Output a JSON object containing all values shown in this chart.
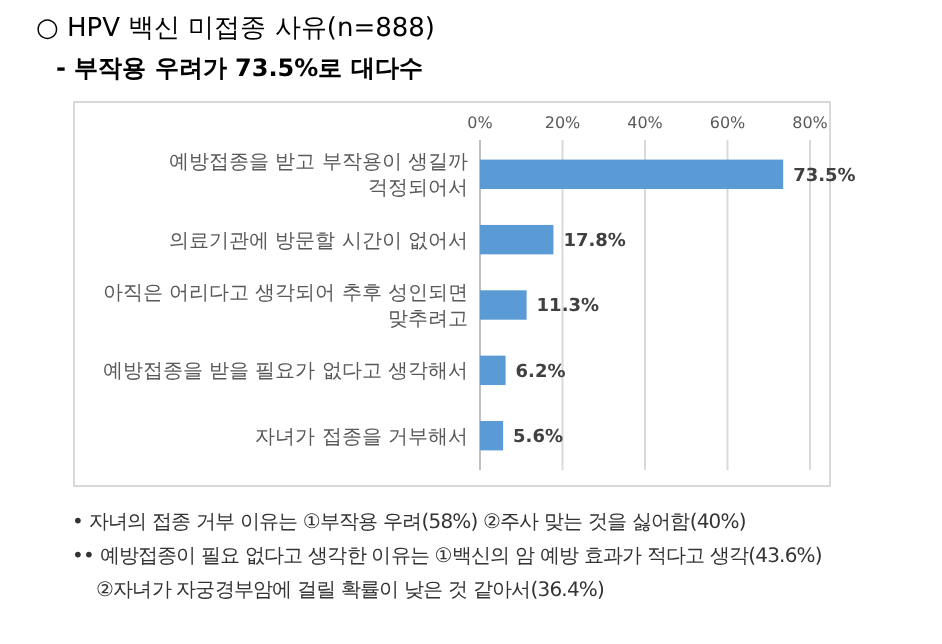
{
  "chart_data": {
    "type": "bar",
    "orientation": "horizontal",
    "title": "○ HPV 백신 미접종 사유(n=888)",
    "subtitle": "- 부작용 우려가 73.5%로 대다수",
    "categories": [
      "예방접종을 받고 부작용이 생길까 걱정되어서",
      "의료기관에 방문할 시간이 없어서",
      "아직은 어리다고 생각되어 추후 성인되면 맞추려고",
      "예방접종을 받을 필요가 없다고 생각해서",
      "자녀가 접종을 거부해서"
    ],
    "values": [
      73.5,
      17.8,
      11.3,
      6.2,
      5.6
    ],
    "value_labels": [
      "73.5%",
      "17.8%",
      "11.3%",
      "6.2%",
      "5.6%"
    ],
    "color": "#5b9bd5",
    "xlim": [
      0,
      80
    ],
    "xticks": [
      {
        "value": 0,
        "label": "0%"
      },
      {
        "value": 20,
        "label": "20%"
      },
      {
        "value": 40,
        "label": "40%"
      },
      {
        "value": 60,
        "label": "60%"
      },
      {
        "value": 80,
        "label": "80%"
      }
    ],
    "grid": "x",
    "annotations": [
      "• 자녀의 접종 거부 이유는 ①부작용 우려(58%) ②주사 맞는 것을 싫어함(40%)",
      "•• 예방접종이 필요 없다고 생각한 이유는 ①백신의 암 예방 효과가 적다고 생각(43.6%)",
      "②자녀가 자궁경부암에 걸릴 확률이 낮은 것 같아서(36.4%)"
    ]
  }
}
